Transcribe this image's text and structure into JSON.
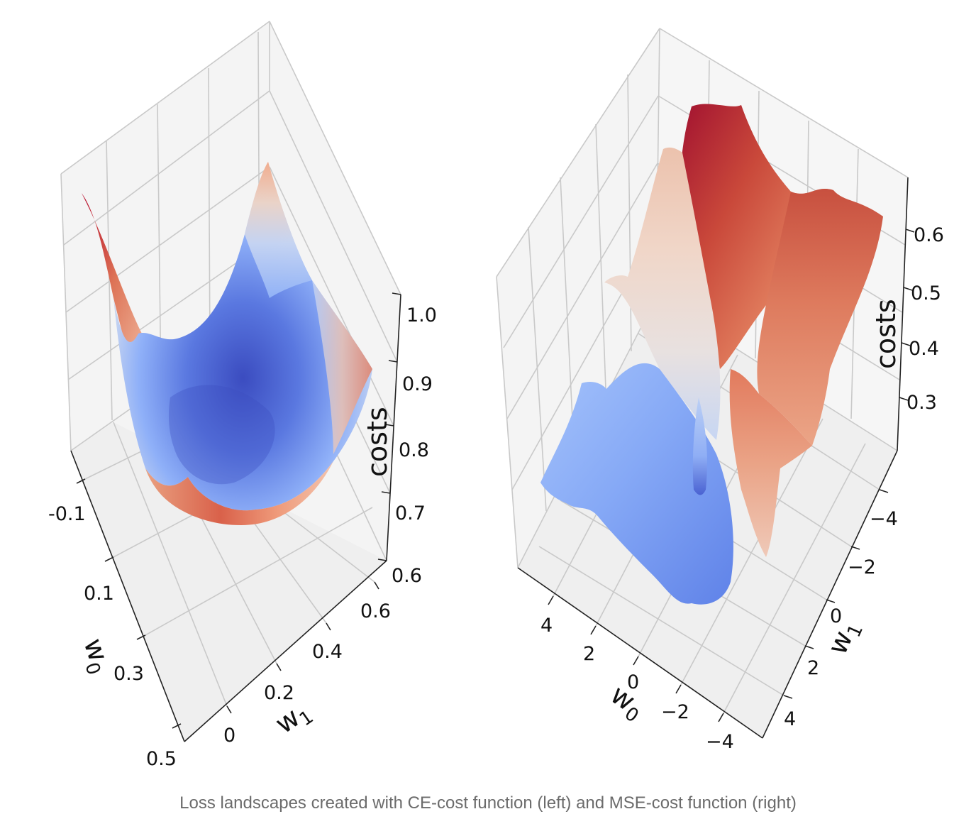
{
  "caption": "Loss landscapes created with CE-cost function (left) and MSE-cost function (right)",
  "colors": {
    "colormap": "coolwarm",
    "low": "#3b4cc0",
    "mid": "#dddddd",
    "high": "#b40426",
    "pane": "#f3f3f3"
  },
  "chart_data": [
    {
      "type": "surface",
      "colormap": "coolwarm",
      "xlabel": "w0",
      "ylabel": "w1",
      "zlabel": "costs",
      "xlim": [
        -0.2,
        0.5
      ],
      "ylim": [
        0,
        0.7
      ],
      "zlim": [
        0.6,
        1.0
      ],
      "x_ticks": [
        "-0.1",
        "0.1",
        "0.3",
        "0.5"
      ],
      "y_ticks": [
        "0",
        "0.2",
        "0.4",
        "0.6"
      ],
      "z_ticks": [
        "0.6",
        "0.7",
        "0.8",
        "0.9",
        "1.0"
      ],
      "surface_min": 0.62,
      "surface_max": 0.97,
      "grid": true
    },
    {
      "type": "surface",
      "colormap": "coolwarm",
      "xlabel": "w0",
      "ylabel": "w1",
      "zlabel": "costs",
      "xlim": [
        -5,
        5
      ],
      "ylim": [
        -5,
        5
      ],
      "zlim": [
        0.2,
        0.68
      ],
      "x_ticks": [
        "4",
        "2",
        "0",
        "−2",
        "−4"
      ],
      "y_ticks": [
        "−4",
        "−2",
        "0",
        "2",
        "4"
      ],
      "z_ticks": [
        "0.3",
        "0.4",
        "0.5",
        "0.6"
      ],
      "surface_min": 0.24,
      "surface_max": 0.66,
      "grid": true
    }
  ]
}
